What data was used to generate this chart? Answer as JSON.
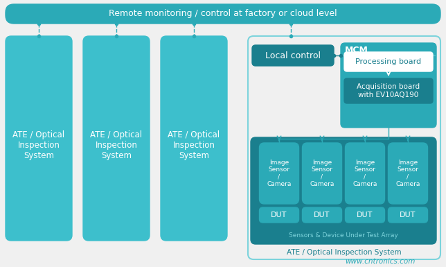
{
  "bg_color": "#f0f0f0",
  "teal_dark": "#1a7f8e",
  "teal_mid": "#2baab7",
  "teal_light": "#3dbfcc",
  "teal_lighter": "#7dd4dc",
  "teal_outer": "#a8dfe5",
  "white": "#ffffff",
  "text_teal": "#2baab7",
  "title_bar_text": "Remote monitoring / control at factory or cloud level",
  "ate_label": "ATE / Optical\nInspection\nSystem",
  "local_control_label": "Local control",
  "mcm_label": "MCM",
  "processing_board_label": "Processing board",
  "acquisition_board_label": "Acquisition board\nwith EV10AQ190",
  "image_sensor_label": "Image\nSensor\n/\nCamera",
  "dut_label": "DUT",
  "sensors_label": "Sensors & Device Under Test Array",
  "ate_system_label": "ATE / Optical Inspection System",
  "watermark": "www.cntronics.com"
}
